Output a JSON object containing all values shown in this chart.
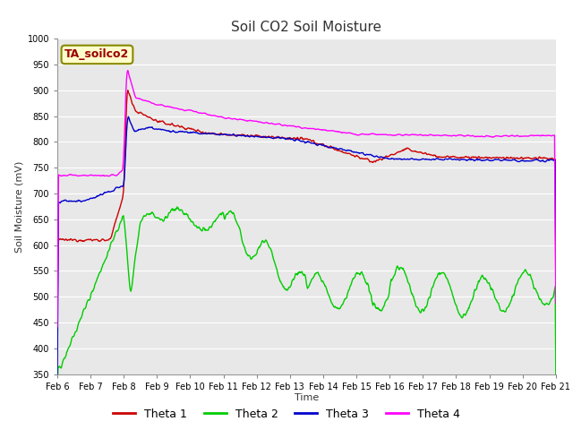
{
  "title": "Soil CO2 Soil Moisture",
  "ylabel": "Soil Moisture (mV)",
  "xlabel": "Time",
  "annotation": "TA_soilco2",
  "ylim": [
    350,
    1000
  ],
  "xlim": [
    0,
    15
  ],
  "xtick_labels": [
    "Feb 6",
    "Feb 7",
    "Feb 8",
    "Feb 9",
    "Feb 10",
    "Feb 11",
    "Feb 12",
    "Feb 13",
    "Feb 14",
    "Feb 15",
    "Feb 16",
    "Feb 17",
    "Feb 18",
    "Feb 19",
    "Feb 20",
    "Feb 21"
  ],
  "ytick_values": [
    350,
    400,
    450,
    500,
    550,
    600,
    650,
    700,
    750,
    800,
    850,
    900,
    950,
    1000
  ],
  "colors": {
    "theta1": "#cc0000",
    "theta2": "#00cc00",
    "theta3": "#0000cc",
    "theta4": "#ff00ff"
  },
  "background_color": "#e8e8e8",
  "annotation_bg": "#ffffcc",
  "annotation_border": "#888800",
  "annotation_text_color": "#990000"
}
